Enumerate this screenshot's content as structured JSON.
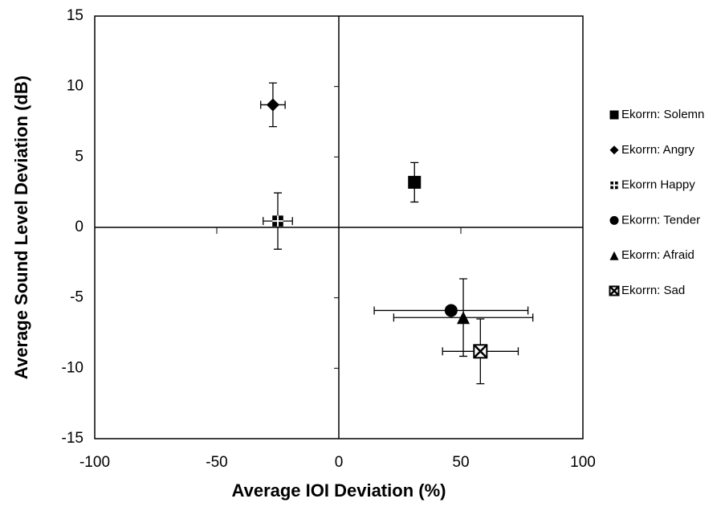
{
  "chart_data": {
    "type": "scatter",
    "xlabel": "Average IOI Deviation (%)",
    "ylabel": "Average Sound Level Deviation (dB)",
    "xlim": [
      -100,
      100
    ],
    "ylim": [
      -15,
      15
    ],
    "xticks": [
      -100,
      -50,
      0,
      50,
      100
    ],
    "yticks": [
      -15,
      -10,
      -5,
      0,
      5,
      10,
      15
    ],
    "series": [
      {
        "name": "Ekorrn: Solemn",
        "marker": "square",
        "color": "#000000",
        "x": [
          31
        ],
        "values": [
          3.2
        ],
        "xerr": [
          2
        ],
        "yerr": [
          1.4
        ]
      },
      {
        "name": "Ekorrn: Angry",
        "marker": "diamond",
        "color": "#000000",
        "x": [
          -27
        ],
        "values": [
          8.7
        ],
        "xerr": [
          5
        ],
        "yerr": [
          1.55
        ]
      },
      {
        "name": "Ekorrn Happy",
        "marker": "checker",
        "color": "#000000",
        "x": [
          -25
        ],
        "values": [
          0.45
        ],
        "xerr": [
          6
        ],
        "yerr": [
          2
        ]
      },
      {
        "name": "Ekorrn: Tender",
        "marker": "circle",
        "color": "#000000",
        "x": [
          46
        ],
        "values": [
          -5.9
        ],
        "xerr": [
          31.5
        ],
        "yerr": [
          0
        ]
      },
      {
        "name": "Ekorrn: Afraid",
        "marker": "triangle",
        "color": "#000000",
        "x": [
          51
        ],
        "values": [
          -6.4
        ],
        "xerr": [
          28.5
        ],
        "yerr": [
          2.75
        ]
      },
      {
        "name": "Ekorrn: Sad",
        "marker": "crossbox",
        "color": "#000000",
        "x": [
          58
        ],
        "values": [
          -8.8
        ],
        "xerr": [
          15.5
        ],
        "yerr": [
          2.3
        ]
      }
    ]
  }
}
